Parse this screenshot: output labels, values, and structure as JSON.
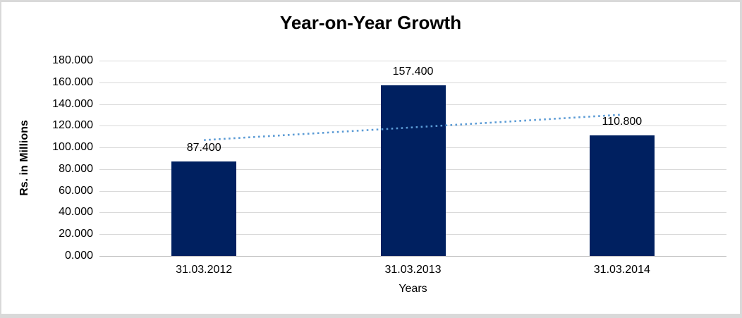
{
  "chart_data": {
    "type": "bar",
    "title": "Year-on-Year Growth",
    "xlabel": "Years",
    "ylabel": "Rs. in Millions",
    "categories": [
      "31.03.2012",
      "31.03.2013",
      "31.03.2014"
    ],
    "values": [
      87.4,
      157.4,
      110.8
    ],
    "bar_labels": [
      "87.400",
      "157.400",
      "110.800"
    ],
    "yticks": [
      "180.000",
      "160.000",
      "140.000",
      "120.000",
      "100.000",
      "80.000",
      "60.000",
      "40.000",
      "20.000",
      "0.000"
    ],
    "ylim": [
      0,
      180
    ],
    "ytick_step": 20,
    "grid": "horizontal",
    "legend": "none",
    "colors": {
      "bar": "#002060",
      "trendline": "#5b9bd5",
      "gridline": "#d9d9d9",
      "axis_line": "#bfbfbf",
      "text": "#000000",
      "frame_border": "#d9d9d9",
      "background": "#ffffff"
    },
    "trendline": {
      "type": "linear",
      "style": "dotted",
      "color": "#5b9bd5",
      "start_value": 106.8,
      "end_value": 130.2
    }
  }
}
